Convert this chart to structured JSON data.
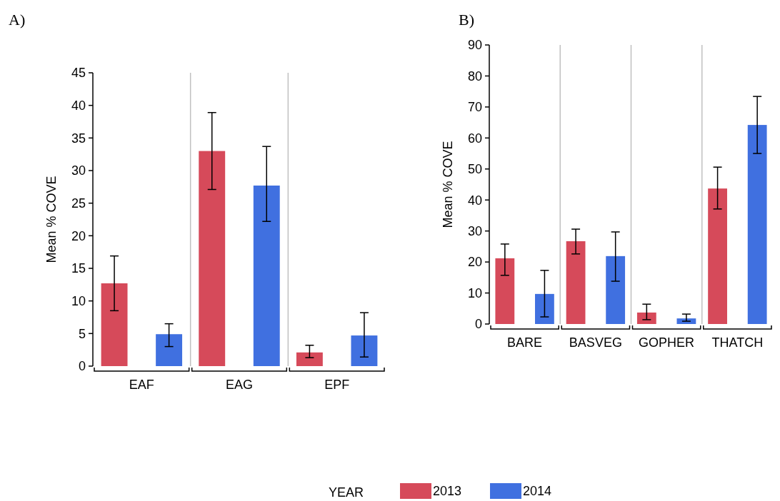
{
  "chart_data": [
    {
      "type": "bar",
      "title": "A)",
      "ylabel": "Mean % COVE",
      "categories": [
        "EAF",
        "EAG",
        "EPF"
      ],
      "ylim": [
        0,
        45
      ],
      "yticks": [
        0,
        5,
        10,
        15,
        20,
        25,
        30,
        35,
        40,
        45
      ],
      "legend": "bottom",
      "legend_title": "YEAR",
      "series": [
        {
          "name": "2013",
          "color": "#d64a5a",
          "values": [
            12.7,
            33.0,
            2.1
          ],
          "errors": [
            [
              8.5,
              16.9
            ],
            [
              27.1,
              38.9
            ],
            [
              1.3,
              3.2
            ]
          ]
        },
        {
          "name": "2014",
          "color": "#4070e0",
          "values": [
            4.9,
            27.7,
            4.7
          ],
          "errors": [
            [
              3.0,
              6.5
            ],
            [
              22.2,
              33.7
            ],
            [
              1.4,
              8.2
            ]
          ]
        }
      ]
    },
    {
      "type": "bar",
      "title": "B)",
      "ylabel": "Mean % COVE",
      "categories": [
        "BARE",
        "BASVEG",
        "GOPHER",
        "THATCH"
      ],
      "ylim": [
        0,
        90
      ],
      "yticks": [
        0,
        10,
        20,
        30,
        40,
        50,
        60,
        70,
        80,
        90
      ],
      "series": [
        {
          "color": "#d64a5a",
          "values": [
            21.2,
            26.7,
            3.7,
            43.7
          ],
          "errors": [
            [
              15.7,
              25.8
            ],
            [
              22.6,
              30.6
            ],
            [
              1.4,
              6.4
            ],
            [
              37.1,
              50.6
            ]
          ]
        },
        {
          "color": "#4070e0",
          "values": [
            9.7,
            21.9,
            1.8,
            64.2
          ],
          "errors": [
            [
              2.3,
              17.3
            ],
            [
              13.8,
              29.7
            ],
            [
              0.9,
              3.2
            ],
            [
              55.0,
              73.4
            ]
          ]
        }
      ]
    }
  ]
}
